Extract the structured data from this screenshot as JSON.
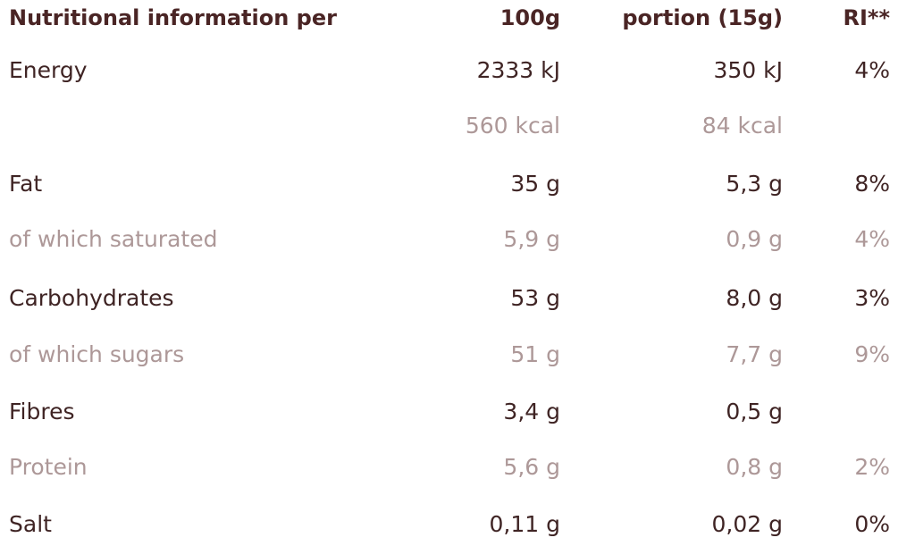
{
  "header": {
    "label": "Nutritional information per",
    "col_100g": "100g",
    "col_portion": "portion (15g)",
    "col_ri": "RI**"
  },
  "rows": [
    {
      "label": "Energy",
      "per_100g": "2333 kJ",
      "per_portion": "350 kJ",
      "ri": "4%",
      "style": "primary"
    },
    {
      "label": "",
      "per_100g": "560 kcal",
      "per_portion": "84 kcal",
      "ri": "",
      "style": "secondary"
    },
    {
      "label": "Fat",
      "per_100g": "35 g",
      "per_portion": "5,3 g",
      "ri": "8%",
      "style": "primary"
    },
    {
      "label": "of which saturated",
      "per_100g": "5,9 g",
      "per_portion": "0,9 g",
      "ri": "4%",
      "style": "secondary"
    },
    {
      "label": "Carbohydrates",
      "per_100g": "53 g",
      "per_portion": "8,0 g",
      "ri": "3%",
      "style": "primary"
    },
    {
      "label": "of which sugars",
      "per_100g": "51 g",
      "per_portion": "7,7 g",
      "ri": "9%",
      "style": "secondary"
    },
    {
      "label": "Fibres",
      "per_100g": "3,4 g",
      "per_portion": "0,5 g",
      "ri": "",
      "style": "primary"
    },
    {
      "label": "Protein",
      "per_100g": "5,6 g",
      "per_portion": "0,8 g",
      "ri": "2%",
      "style": "secondary"
    },
    {
      "label": "Salt",
      "per_100g": "0,11 g",
      "per_portion": "0,02 g",
      "ri": "0%",
      "style": "primary"
    }
  ],
  "colors": {
    "primary_text": "#3f2424",
    "secondary_text": "#ad9898",
    "header_text": "#4a2525"
  }
}
